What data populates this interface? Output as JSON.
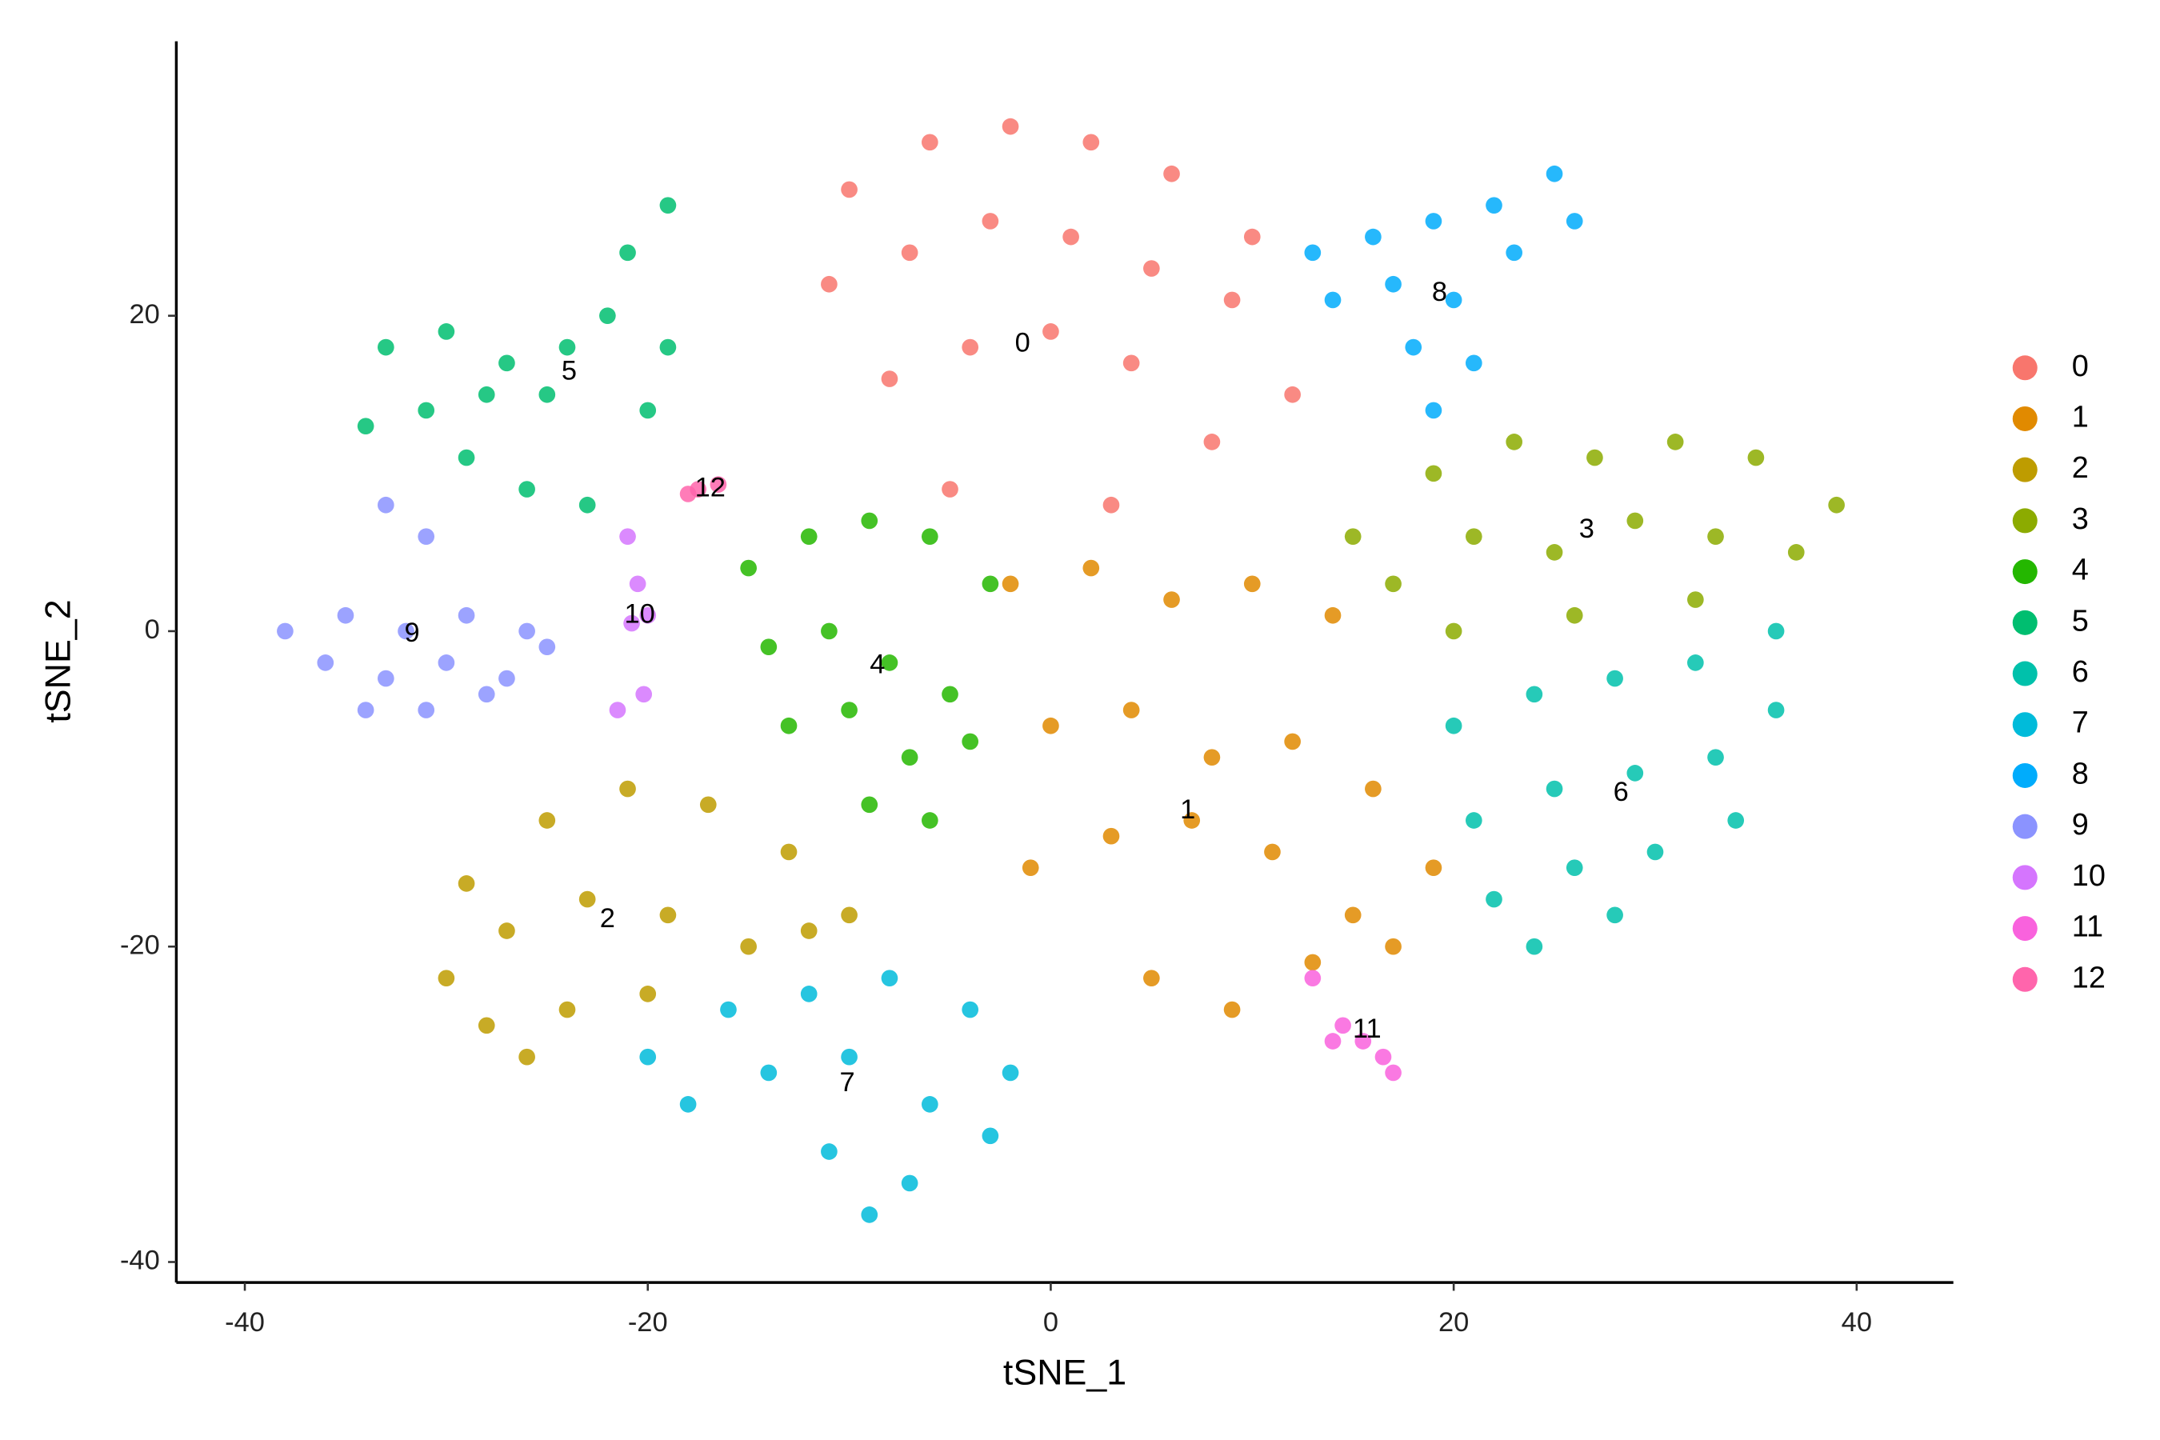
{
  "chart_data": {
    "type": "scatter",
    "x_label": "tSNE_1",
    "y_label": "tSNE_2",
    "xlim": [
      -43.4,
      44.8
    ],
    "ylim": [
      -41.3,
      37.4
    ],
    "xticks": [
      -40,
      -20,
      0,
      20,
      40
    ],
    "yticks": [
      -40,
      -20,
      0,
      20
    ],
    "legend_position": "right",
    "series": [
      {
        "name": "0",
        "color": "#F8766D",
        "x": [
          -10,
          -6,
          -2,
          2,
          6,
          10,
          -11,
          -7,
          -3,
          1,
          5,
          9,
          12,
          -8,
          -4,
          0,
          4,
          8,
          -5,
          3
        ],
        "y": [
          28,
          31,
          32,
          31,
          29,
          25,
          22,
          24,
          26,
          25,
          23,
          21,
          15,
          16,
          18,
          19,
          17,
          12,
          9,
          8
        ]
      },
      {
        "name": "1",
        "color": "#E18A00",
        "x": [
          -2,
          2,
          6,
          10,
          14,
          0,
          4,
          8,
          12,
          16,
          19,
          -1,
          3,
          7,
          11,
          15,
          5,
          9,
          13,
          17
        ],
        "y": [
          3,
          4,
          2,
          3,
          1,
          -6,
          -5,
          -8,
          -7,
          -10,
          -15,
          -15,
          -13,
          -12,
          -14,
          -18,
          -22,
          -24,
          -21,
          -20
        ]
      },
      {
        "name": "2",
        "color": "#BE9C00",
        "x": [
          -29,
          -25,
          -21,
          -17,
          -13,
          -10,
          -30,
          -27,
          -23,
          -19,
          -15,
          -12,
          -28,
          -24,
          -20,
          -26
        ],
        "y": [
          -16,
          -12,
          -10,
          -11,
          -14,
          -18,
          -22,
          -19,
          -17,
          -18,
          -20,
          -19,
          -25,
          -24,
          -23,
          -27
        ]
      },
      {
        "name": "3",
        "color": "#8CAB00",
        "x": [
          15,
          19,
          23,
          27,
          31,
          35,
          39,
          17,
          21,
          25,
          29,
          33,
          37,
          20,
          26,
          32
        ],
        "y": [
          6,
          10,
          12,
          11,
          12,
          11,
          8,
          3,
          6,
          5,
          7,
          6,
          5,
          0,
          1,
          2
        ]
      },
      {
        "name": "4",
        "color": "#24B700",
        "x": [
          -15,
          -12,
          -9,
          -6,
          -3,
          -14,
          -11,
          -8,
          -5,
          -13,
          -10,
          -7,
          -4,
          -9,
          -6
        ],
        "y": [
          4,
          6,
          7,
          6,
          3,
          -1,
          0,
          -2,
          -4,
          -6,
          -5,
          -8,
          -7,
          -11,
          -12
        ]
      },
      {
        "name": "5",
        "color": "#00BE70",
        "x": [
          -33,
          -30,
          -27,
          -24,
          -21,
          -19,
          -34,
          -31,
          -28,
          -25,
          -22,
          -19,
          -29,
          -26,
          -23,
          -20
        ],
        "y": [
          18,
          19,
          17,
          18,
          24,
          27,
          13,
          14,
          15,
          15,
          20,
          18,
          11,
          9,
          8,
          14
        ]
      },
      {
        "name": "6",
        "color": "#00C1AB",
        "x": [
          20,
          24,
          28,
          32,
          36,
          21,
          25,
          29,
          33,
          36,
          22,
          26,
          30,
          34,
          24,
          28
        ],
        "y": [
          -6,
          -4,
          -3,
          -2,
          0,
          -12,
          -10,
          -9,
          -8,
          -5,
          -17,
          -15,
          -14,
          -12,
          -20,
          -18
        ]
      },
      {
        "name": "7",
        "color": "#00BBDA",
        "x": [
          -20,
          -16,
          -12,
          -8,
          -4,
          -2,
          -18,
          -14,
          -10,
          -6,
          -3,
          -11,
          -7,
          -9
        ],
        "y": [
          -27,
          -24,
          -23,
          -22,
          -24,
          -28,
          -30,
          -28,
          -27,
          -30,
          -32,
          -33,
          -35,
          -37
        ]
      },
      {
        "name": "8",
        "color": "#00ACFC",
        "x": [
          13,
          16,
          19,
          22,
          25,
          14,
          17,
          20,
          23,
          26,
          18,
          21,
          19
        ],
        "y": [
          24,
          25,
          26,
          27,
          29,
          21,
          22,
          21,
          24,
          26,
          18,
          17,
          14
        ]
      },
      {
        "name": "9",
        "color": "#8B93FF",
        "x": [
          -38,
          -35,
          -32,
          -29,
          -26,
          -36,
          -33,
          -30,
          -27,
          -25,
          -34,
          -31,
          -28,
          -33,
          -31
        ],
        "y": [
          0,
          1,
          0,
          1,
          0,
          -2,
          -3,
          -2,
          -3,
          -1,
          -5,
          -5,
          -4,
          8,
          6
        ]
      },
      {
        "name": "10",
        "color": "#D575FE",
        "x": [
          -21,
          -20.5,
          -20,
          -21.5,
          -20.2,
          -20.8
        ],
        "y": [
          6,
          3,
          1,
          -5,
          -4,
          0.5
        ]
      },
      {
        "name": "11",
        "color": "#F962DD",
        "x": [
          13,
          14.5,
          15.5,
          16.5,
          17,
          14
        ],
        "y": [
          -22,
          -25,
          -26,
          -27,
          -28,
          -26
        ]
      },
      {
        "name": "12",
        "color": "#FF65AC",
        "x": [
          -18,
          -17.5,
          -16.5
        ],
        "y": [
          8.7,
          9,
          9.3
        ]
      }
    ],
    "annotations": [
      {
        "text": "0",
        "x": -1.4,
        "y": 18.2
      },
      {
        "text": "1",
        "x": 6.8,
        "y": -11.4
      },
      {
        "text": "2",
        "x": -22,
        "y": -18.3
      },
      {
        "text": "3",
        "x": 26.6,
        "y": 6.4
      },
      {
        "text": "4",
        "x": -8.6,
        "y": -2.2
      },
      {
        "text": "5",
        "x": -23.9,
        "y": 16.4
      },
      {
        "text": "6",
        "x": 28.3,
        "y": -10.3
      },
      {
        "text": "7",
        "x": -10.1,
        "y": -28.7
      },
      {
        "text": "8",
        "x": 19.3,
        "y": 21.4
      },
      {
        "text": "9",
        "x": -31.7,
        "y": -0.2
      },
      {
        "text": "10",
        "x": -20.4,
        "y": 1
      },
      {
        "text": "11",
        "x": 15.7,
        "y": -25.3
      },
      {
        "text": "12",
        "x": -16.9,
        "y": 9
      }
    ]
  }
}
